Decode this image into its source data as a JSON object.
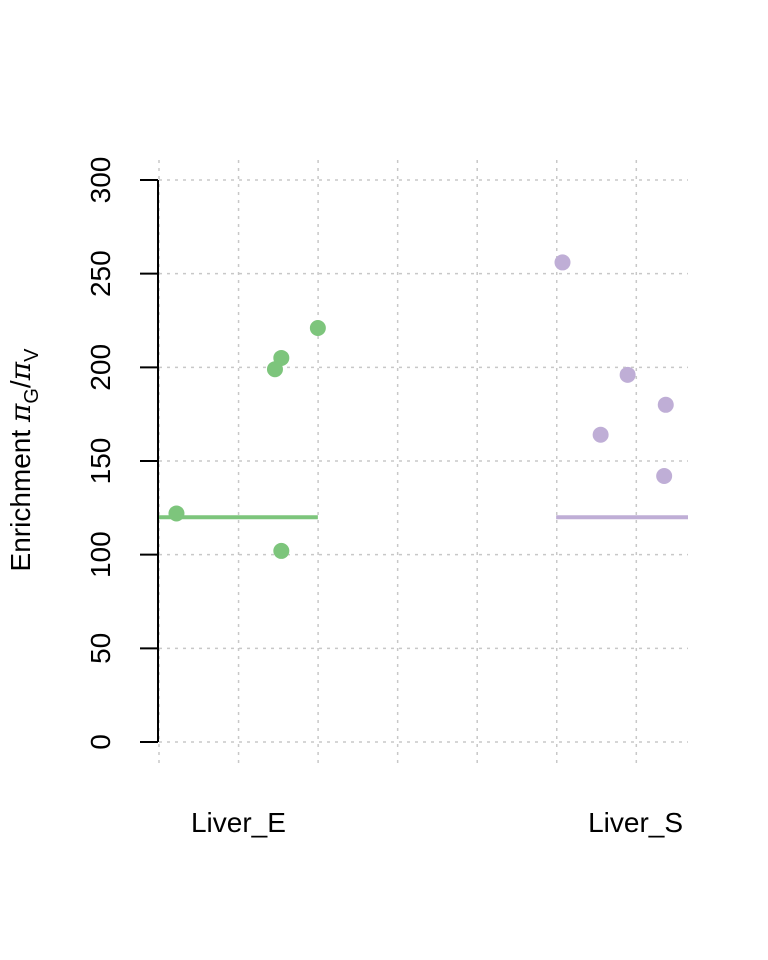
{
  "chart_data": {
    "type": "scatter",
    "title": "",
    "ylabel": {
      "prefix": "Enrichment ",
      "num_symbol": "π",
      "num_sub": "G",
      "slash": "/",
      "den_symbol": "π",
      "den_sub": "V"
    },
    "ylim": [
      0,
      300
    ],
    "yticks": [
      "0",
      "50",
      "100",
      "150",
      "200",
      "250",
      "300"
    ],
    "grid": true,
    "series": [
      {
        "name": "Liver_E",
        "color": "#7dc57c",
        "points": [
          {
            "x": 0.11,
            "y": 122
          },
          {
            "x": 0.73,
            "y": 199
          },
          {
            "x": 0.77,
            "y": 205
          },
          {
            "x": 0.77,
            "y": 102
          },
          {
            "x": 1.0,
            "y": 221
          }
        ],
        "reference_line": {
          "y": 120,
          "x_from": 0,
          "x_to": 1
        }
      },
      {
        "name": "Liver_S",
        "color": "#bfaed6",
        "points": [
          {
            "x": 2.54,
            "y": 256
          },
          {
            "x": 2.78,
            "y": 164
          },
          {
            "x": 2.95,
            "y": 196
          },
          {
            "x": 3.18,
            "y": 142
          },
          {
            "x": 3.19,
            "y": 180
          }
        ],
        "reference_line": {
          "y": 120,
          "x_from": 2.5,
          "x_to": 3.33
        }
      }
    ],
    "categories": [
      {
        "label": "Liver_E",
        "x": 0.5
      },
      {
        "label": "Liver_S",
        "x": 3.0
      }
    ],
    "xlim": [
      0,
      3.33
    ]
  }
}
